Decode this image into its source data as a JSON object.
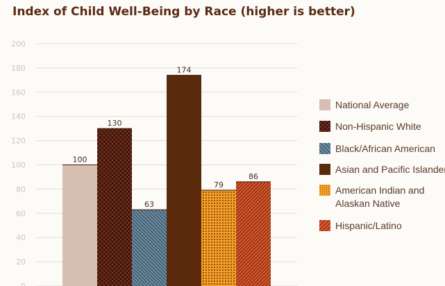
{
  "chart_data": {
    "type": "bar",
    "title": "Index of Child Well-Being by Race (higher is better)",
    "xlabel": "",
    "ylabel": "",
    "ylim": [
      0,
      200
    ],
    "yticks": [
      0,
      20,
      40,
      60,
      80,
      100,
      120,
      140,
      160,
      180,
      200
    ],
    "grid": true,
    "legend_position": "right",
    "series": [
      {
        "name": "National Average",
        "value": 100,
        "color": "#d6bfb0",
        "pattern": "solid"
      },
      {
        "name": "Non-Hispanic White",
        "value": 130,
        "color": "#7a3320",
        "pattern": "crosshatch"
      },
      {
        "name": "Black/African American",
        "value": 63,
        "color": "#5f7f95",
        "pattern": "diagonal-back"
      },
      {
        "name": "Asian and Pacific Islander",
        "value": 174,
        "color": "#5b2a0c",
        "pattern": "solid"
      },
      {
        "name": "American Indian and Alaskan Native",
        "value": 79,
        "color": "#e8901f",
        "pattern": "dots"
      },
      {
        "name": "Hispanic/Latino",
        "value": 86,
        "color": "#d6542a",
        "pattern": "diagonal"
      }
    ]
  },
  "legend": {
    "items": [
      {
        "lines": [
          "National Average"
        ]
      },
      {
        "lines": [
          "Non-Hispanic White"
        ]
      },
      {
        "lines": [
          "Black/African American"
        ]
      },
      {
        "lines": [
          "Asian and Pacific Islander"
        ]
      },
      {
        "lines": [
          "American Indian and",
          "Alaskan Native"
        ]
      },
      {
        "lines": [
          "Hispanic/Latino"
        ]
      }
    ]
  }
}
